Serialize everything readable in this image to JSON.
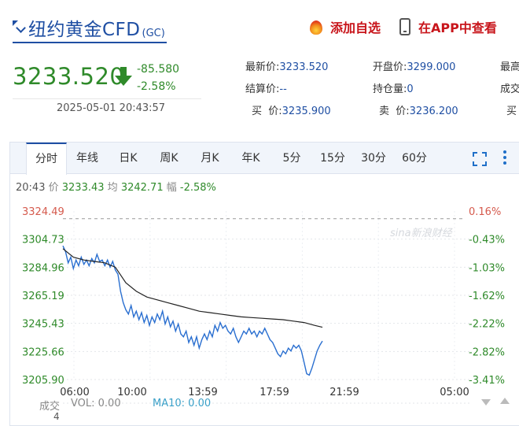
{
  "header": {
    "title": "纽约黄金CFD",
    "title_sub": "(GC)",
    "add_watchlist_label": "添加自选",
    "view_in_app_label": "在APP中查看"
  },
  "quote": {
    "price": "3233.520",
    "change": "-85.580",
    "change_pct": "-2.58%",
    "datetime": "2025-05-01 20:43:57",
    "fields": [
      {
        "label": "最新价:",
        "value": "3233.520"
      },
      {
        "label": "开盘价:",
        "value": "3299.000"
      },
      {
        "label": "最高",
        "value": ""
      },
      {
        "label": "结算价:",
        "value": "--"
      },
      {
        "label": "持仓量:",
        "value": "0"
      },
      {
        "label": "成交",
        "value": ""
      },
      {
        "label": "买  价:",
        "value": "3235.900"
      },
      {
        "label": "卖  价:",
        "value": "3236.200"
      },
      {
        "label": "买",
        "value": ""
      }
    ],
    "colors": {
      "down": "#2f8a2a",
      "link": "#1f4fa3"
    }
  },
  "tabs": [
    {
      "label": "分时",
      "active": true
    },
    {
      "label": "年线"
    },
    {
      "label": "日K"
    },
    {
      "label": "周K"
    },
    {
      "label": "月K"
    },
    {
      "label": "年K"
    },
    {
      "label": "5分"
    },
    {
      "label": "15分"
    },
    {
      "label": "30分"
    },
    {
      "label": "60分"
    }
  ],
  "info": {
    "time": "20:43",
    "price_label": "价",
    "price": "3233.43",
    "avg_label": "均",
    "avg": "3242.71",
    "pct_label": "幅",
    "pct": "-2.58%"
  },
  "volume": {
    "label": "成交",
    "vol": "VOL: 0.00",
    "ma10": "MA10: 0.00",
    "scale": "4"
  },
  "chart_data": {
    "type": "line",
    "y_left_ticks": [
      "3324.49",
      "3304.73",
      "3284.96",
      "3265.19",
      "3245.43",
      "3225.66",
      "3205.90"
    ],
    "y_right_ticks": [
      "0.16%",
      "-0.43%",
      "-1.03%",
      "-1.62%",
      "-2.22%",
      "-2.82%",
      "-3.41%"
    ],
    "x_ticks": [
      "06:00",
      "10:00",
      "13:59",
      "17:59",
      "21:59",
      "05:00"
    ],
    "ylim": [
      3205.9,
      3324.49
    ],
    "reference_line": 3319.1,
    "watermark": "sina新浪财经",
    "series": [
      {
        "name": "价",
        "color": "#2a6fd0",
        "points": [
          [
            0,
            3300
          ],
          [
            1,
            3296
          ],
          [
            2,
            3288
          ],
          [
            3,
            3292
          ],
          [
            4,
            3284
          ],
          [
            5,
            3290
          ],
          [
            6,
            3286
          ],
          [
            7,
            3292
          ],
          [
            8,
            3287
          ],
          [
            9,
            3290
          ],
          [
            10,
            3286
          ],
          [
            11,
            3291
          ],
          [
            12,
            3288
          ],
          [
            13,
            3294
          ],
          [
            14,
            3289
          ],
          [
            15,
            3290
          ],
          [
            16,
            3286
          ],
          [
            17,
            3290
          ],
          [
            18,
            3285
          ],
          [
            19,
            3289
          ],
          [
            20,
            3283
          ],
          [
            21,
            3280
          ],
          [
            22,
            3268
          ],
          [
            23,
            3260
          ],
          [
            24,
            3255
          ],
          [
            25,
            3252
          ],
          [
            26,
            3258
          ],
          [
            27,
            3250
          ],
          [
            28,
            3254
          ],
          [
            29,
            3248
          ],
          [
            30,
            3253
          ],
          [
            31,
            3246
          ],
          [
            32,
            3251
          ],
          [
            33,
            3244
          ],
          [
            34,
            3250
          ],
          [
            35,
            3246
          ],
          [
            36,
            3252
          ],
          [
            37,
            3248
          ],
          [
            38,
            3254
          ],
          [
            39,
            3245
          ],
          [
            40,
            3250
          ],
          [
            41,
            3243
          ],
          [
            42,
            3247
          ],
          [
            43,
            3240
          ],
          [
            44,
            3245
          ],
          [
            45,
            3238
          ],
          [
            46,
            3236
          ],
          [
            47,
            3240
          ],
          [
            48,
            3232
          ],
          [
            49,
            3236
          ],
          [
            50,
            3230
          ],
          [
            51,
            3236
          ],
          [
            52,
            3228
          ],
          [
            53,
            3234
          ],
          [
            54,
            3238
          ],
          [
            55,
            3234
          ],
          [
            56,
            3240
          ],
          [
            57,
            3236
          ],
          [
            58,
            3244
          ],
          [
            59,
            3240
          ],
          [
            60,
            3246
          ],
          [
            61,
            3242
          ],
          [
            62,
            3244
          ],
          [
            63,
            3240
          ],
          [
            64,
            3238
          ],
          [
            65,
            3242
          ],
          [
            66,
            3236
          ],
          [
            67,
            3232
          ],
          [
            68,
            3236
          ],
          [
            69,
            3240
          ],
          [
            70,
            3238
          ],
          [
            71,
            3242
          ],
          [
            72,
            3238
          ],
          [
            73,
            3240
          ],
          [
            74,
            3236
          ],
          [
            75,
            3240
          ],
          [
            76,
            3238
          ],
          [
            77,
            3242
          ],
          [
            78,
            3238
          ],
          [
            79,
            3234
          ],
          [
            80,
            3232
          ],
          [
            81,
            3228
          ],
          [
            82,
            3224
          ],
          [
            83,
            3222
          ],
          [
            84,
            3226
          ],
          [
            85,
            3224
          ],
          [
            86,
            3228
          ],
          [
            87,
            3226
          ],
          [
            88,
            3230
          ],
          [
            89,
            3228
          ],
          [
            90,
            3230
          ],
          [
            91,
            3226
          ],
          [
            92,
            3218
          ],
          [
            93,
            3210
          ],
          [
            94,
            3209
          ],
          [
            95,
            3214
          ],
          [
            96,
            3220
          ],
          [
            97,
            3226
          ],
          [
            98,
            3230
          ],
          [
            99,
            3233
          ]
        ]
      },
      {
        "name": "均",
        "color": "#222222",
        "points": [
          [
            0,
            3298
          ],
          [
            4,
            3292
          ],
          [
            8,
            3290
          ],
          [
            12,
            3289
          ],
          [
            16,
            3288
          ],
          [
            20,
            3285
          ],
          [
            24,
            3274
          ],
          [
            28,
            3268
          ],
          [
            32,
            3264
          ],
          [
            36,
            3262
          ],
          [
            40,
            3260
          ],
          [
            44,
            3258
          ],
          [
            48,
            3256
          ],
          [
            52,
            3254
          ],
          [
            56,
            3253
          ],
          [
            60,
            3252
          ],
          [
            64,
            3251
          ],
          [
            68,
            3250
          ],
          [
            72,
            3249.5
          ],
          [
            76,
            3249
          ],
          [
            80,
            3248.5
          ],
          [
            84,
            3248
          ],
          [
            88,
            3247
          ],
          [
            92,
            3246
          ],
          [
            96,
            3244
          ],
          [
            99,
            3242.7
          ]
        ]
      }
    ]
  }
}
